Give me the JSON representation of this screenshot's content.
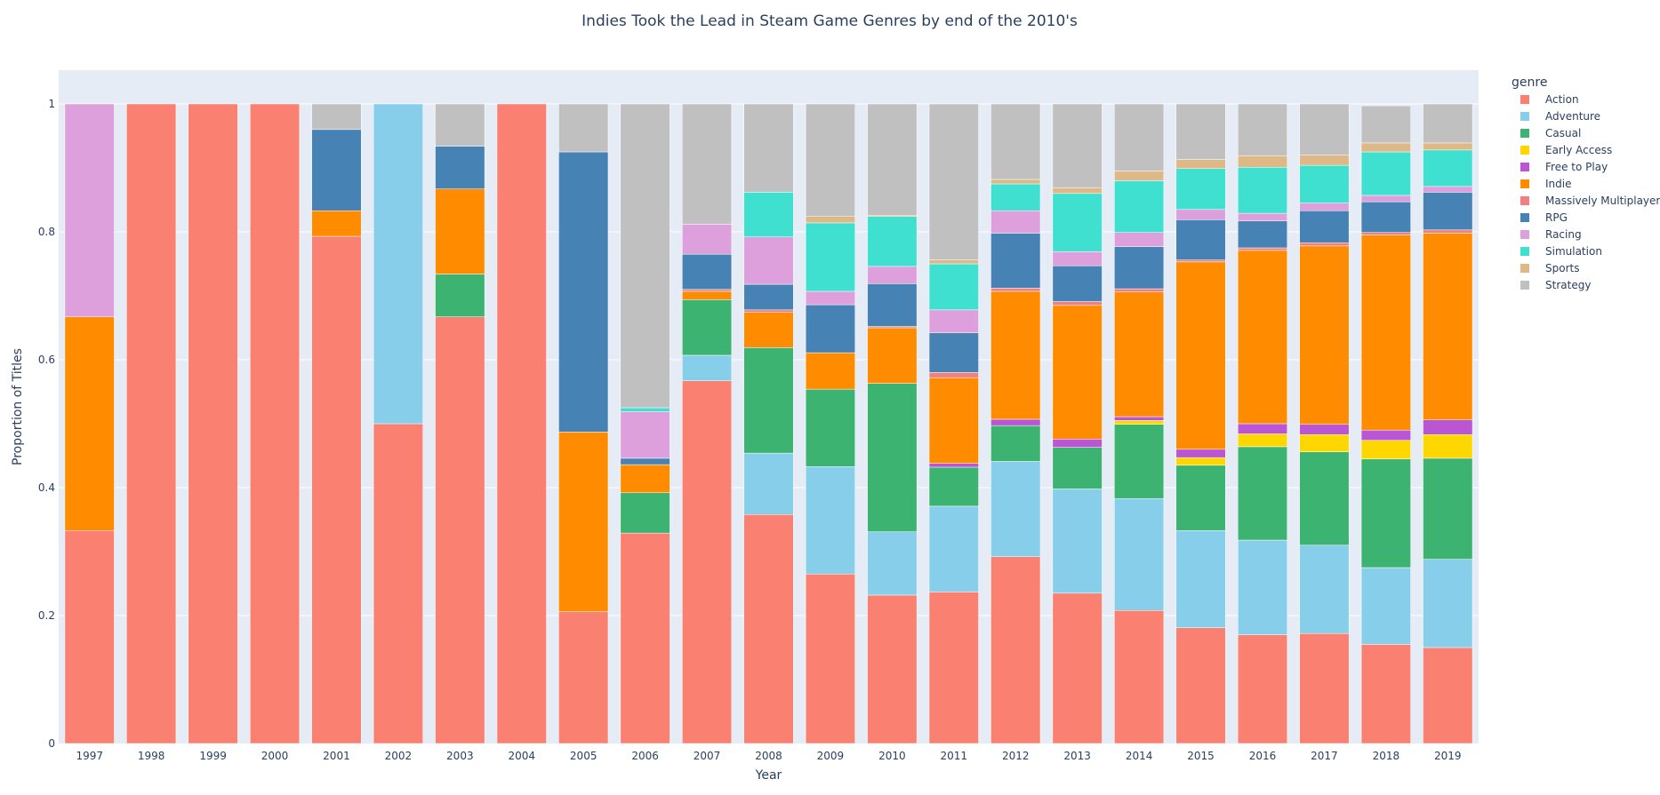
{
  "chart_data": {
    "type": "bar",
    "stacked": true,
    "title": "Indies Took the Lead in Steam Game Genres by end of the 2010's",
    "xlabel": "Year",
    "ylabel": "Proportion of Titles",
    "ylim": [
      0,
      1
    ],
    "yticks": [
      0,
      0.2,
      0.4,
      0.6,
      0.8,
      1
    ],
    "ytick_labels": [
      "0",
      "0.2",
      "0.4",
      "0.6",
      "0.8",
      "1"
    ],
    "grid": true,
    "legend_title": "genre",
    "legend_position": "right",
    "categories": [
      "1997",
      "1998",
      "1999",
      "2000",
      "2001",
      "2002",
      "2003",
      "2004",
      "2005",
      "2006",
      "2007",
      "2008",
      "2009",
      "2010",
      "2011",
      "2012",
      "2013",
      "2014",
      "2015",
      "2016",
      "2017",
      "2018",
      "2019"
    ],
    "series": [
      {
        "name": "Action",
        "color": "#fa8072",
        "values": [
          0.333,
          1,
          1,
          1,
          0.793,
          0.5,
          0.667,
          1,
          0.206,
          0.329,
          0.567,
          0.358,
          0.265,
          0.232,
          0.237,
          0.292,
          0.235,
          0.208,
          0.181,
          0.17,
          0.172,
          0.155,
          0.15
        ]
      },
      {
        "name": "Adventure",
        "color": "#87ceeb",
        "values": [
          0,
          0,
          0,
          0,
          0,
          0.5,
          0,
          0,
          0,
          0,
          0.04,
          0.096,
          0.168,
          0.099,
          0.134,
          0.149,
          0.163,
          0.175,
          0.152,
          0.148,
          0.138,
          0.12,
          0.138
        ]
      },
      {
        "name": "Casual",
        "color": "#3cb371",
        "values": [
          0,
          0,
          0,
          0,
          0,
          0,
          0.067,
          0,
          0,
          0.063,
          0.087,
          0.165,
          0.121,
          0.232,
          0.061,
          0.056,
          0.065,
          0.116,
          0.102,
          0.146,
          0.146,
          0.17,
          0.158
        ]
      },
      {
        "name": "Early Access",
        "color": "#ffd700",
        "values": [
          0,
          0,
          0,
          0,
          0,
          0,
          0,
          0,
          0,
          0,
          0,
          0,
          0,
          0,
          0,
          0,
          0,
          0.006,
          0.012,
          0.02,
          0.027,
          0.029,
          0.037
        ]
      },
      {
        "name": "Free to Play",
        "color": "#ba55d3",
        "values": [
          0,
          0,
          0,
          0,
          0,
          0,
          0,
          0,
          0,
          0,
          0,
          0,
          0,
          0,
          0.006,
          0.01,
          0.013,
          0.006,
          0.013,
          0.016,
          0.016,
          0.016,
          0.023
        ]
      },
      {
        "name": "Indie",
        "color": "#ff8c00",
        "values": [
          0.334,
          0,
          0,
          0,
          0.04,
          0,
          0.133,
          0,
          0.281,
          0.044,
          0.013,
          0.055,
          0.057,
          0.087,
          0.134,
          0.2,
          0.209,
          0.195,
          0.293,
          0.271,
          0.279,
          0.305,
          0.292
        ]
      },
      {
        "name": "Massively Multiplayer",
        "color": "#f08080",
        "values": [
          0,
          0,
          0,
          0,
          0,
          0,
          0,
          0,
          0,
          0,
          0.003,
          0.004,
          0,
          0.002,
          0.008,
          0.005,
          0.006,
          0.005,
          0.003,
          0.004,
          0.005,
          0.004,
          0.005
        ]
      },
      {
        "name": "RPG",
        "color": "#4682b4",
        "values": [
          0,
          0,
          0,
          0,
          0.127,
          0,
          0.067,
          0,
          0.438,
          0.01,
          0.055,
          0.04,
          0.075,
          0.067,
          0.062,
          0.086,
          0.056,
          0.066,
          0.063,
          0.042,
          0.05,
          0.048,
          0.059
        ]
      },
      {
        "name": "Racing",
        "color": "#dda0dd",
        "values": [
          0.333,
          0,
          0,
          0,
          0,
          0,
          0,
          0,
          0,
          0.073,
          0.047,
          0.074,
          0.021,
          0.027,
          0.036,
          0.035,
          0.022,
          0.022,
          0.016,
          0.012,
          0.012,
          0.01,
          0.009
        ]
      },
      {
        "name": "Simulation",
        "color": "#40e0d0",
        "values": [
          0,
          0,
          0,
          0,
          0,
          0,
          0,
          0,
          0,
          0.006,
          0,
          0.07,
          0.107,
          0.078,
          0.072,
          0.042,
          0.091,
          0.081,
          0.064,
          0.072,
          0.059,
          0.068,
          0.057
        ]
      },
      {
        "name": "Sports",
        "color": "#deb887",
        "values": [
          0,
          0,
          0,
          0,
          0,
          0,
          0,
          0,
          0,
          0,
          0,
          0,
          0.01,
          0.002,
          0.006,
          0.007,
          0.009,
          0.015,
          0.014,
          0.018,
          0.016,
          0.014,
          0.011
        ]
      },
      {
        "name": "Strategy",
        "color": "#c0c0c0",
        "values": [
          0,
          0,
          0,
          0,
          0.04,
          0,
          0.066,
          0,
          0.075,
          0.475,
          0.188,
          0.138,
          0.176,
          0.174,
          0.244,
          0.118,
          0.131,
          0.105,
          0.087,
          0.081,
          0.08,
          0.058,
          0.061
        ]
      }
    ]
  }
}
